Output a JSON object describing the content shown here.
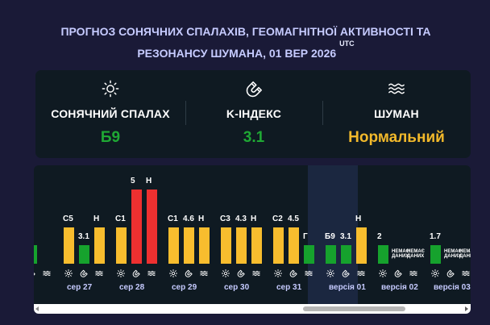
{
  "title": {
    "line1": "ПРОГНОЗ СОНЯЧНИХ СПАЛАХІВ, ГЕОМАГНІТНОЇ АКТИВНОСТІ ТА",
    "line2": "РЕЗОНАНСУ ШУМАНА, 01 ВЕР 2026",
    "timezone": "UTC"
  },
  "summary": {
    "flare": {
      "icon": "sun-icon",
      "label": "СОНЯЧНИЙ СПАЛАХ",
      "value": "Б9",
      "color": "#1fa834"
    },
    "kindex": {
      "icon": "magnet-icon",
      "label": "K-ІНДЕКС",
      "value": "3.1",
      "color": "#1fa834"
    },
    "schumann": {
      "icon": "waves-icon",
      "label": "ШУМАН",
      "value": "Нормальний",
      "color": "#f2b92b"
    }
  },
  "colors": {
    "green": "#16a22d",
    "yellow": "#f8bd2e",
    "red": "#ee3030",
    "accent_text": "#c6cbff"
  },
  "chart_data": {
    "type": "bar",
    "series_order": [
      "flare",
      "kindex",
      "schumann"
    ],
    "days": [
      {
        "label": "сер 27",
        "bars": [
          {
            "kind": "flare",
            "label": "C5",
            "level": 2,
            "color": "yellow"
          },
          {
            "kind": "kindex",
            "label": "3.1",
            "level": 1,
            "color": "green"
          },
          {
            "kind": "schumann",
            "label": "Н",
            "level": 2,
            "color": "yellow"
          }
        ]
      },
      {
        "label": "сер 28",
        "bars": [
          {
            "kind": "flare",
            "label": "C1",
            "level": 2,
            "color": "yellow"
          },
          {
            "kind": "kindex",
            "label": "5",
            "level": 4,
            "color": "red"
          },
          {
            "kind": "schumann",
            "label": "Н",
            "level": 4,
            "color": "red"
          }
        ]
      },
      {
        "label": "сер 29",
        "bars": [
          {
            "kind": "flare",
            "label": "C1",
            "level": 2,
            "color": "yellow"
          },
          {
            "kind": "kindex",
            "label": "4.6",
            "level": 2,
            "color": "yellow"
          },
          {
            "kind": "schumann",
            "label": "Н",
            "level": 2,
            "color": "yellow"
          }
        ]
      },
      {
        "label": "сер 30",
        "bars": [
          {
            "kind": "flare",
            "label": "C3",
            "level": 2,
            "color": "yellow"
          },
          {
            "kind": "kindex",
            "label": "4.3",
            "level": 2,
            "color": "yellow"
          },
          {
            "kind": "schumann",
            "label": "Н",
            "level": 2,
            "color": "yellow"
          }
        ]
      },
      {
        "label": "сер 31",
        "bars": [
          {
            "kind": "flare",
            "label": "C2",
            "level": 2,
            "color": "yellow"
          },
          {
            "kind": "kindex",
            "label": "4.5",
            "level": 2,
            "color": "yellow"
          },
          {
            "kind": "schumann",
            "label": "Г",
            "level": 1,
            "color": "green"
          }
        ]
      },
      {
        "label": "версія 01",
        "bars": [
          {
            "kind": "flare",
            "label": "Б9",
            "level": 1,
            "color": "green"
          },
          {
            "kind": "kindex",
            "label": "3.1",
            "level": 1,
            "color": "green"
          },
          {
            "kind": "schumann",
            "label": "Н",
            "level": 2,
            "color": "yellow"
          }
        ]
      },
      {
        "label": "версія 02",
        "bars": [
          {
            "kind": "flare",
            "label": "2",
            "level": 1,
            "color": "green"
          },
          {
            "kind": "kindex",
            "label": "НЕМАЄ ДАНИХ",
            "level": 0,
            "color": "none"
          },
          {
            "kind": "schumann",
            "label": "НЕМАЄ ДАНИХ",
            "level": 0,
            "color": "none"
          }
        ]
      },
      {
        "label": "версія 03",
        "bars": [
          {
            "kind": "flare",
            "label": "1.7",
            "level": 1,
            "color": "green"
          },
          {
            "kind": "kindex",
            "label": "НЕМАЄ ДАНИХ",
            "level": 0,
            "color": "none"
          },
          {
            "kind": "schumann",
            "label": "НЕМАЄ ДАНИХ",
            "level": 0,
            "color": "none"
          }
        ]
      }
    ],
    "partial_left_bar": {
      "level": 1,
      "color": "green"
    },
    "level_scale": [
      0,
      1,
      2,
      4
    ]
  },
  "scrollbar": {
    "position_fraction": 0.82
  }
}
